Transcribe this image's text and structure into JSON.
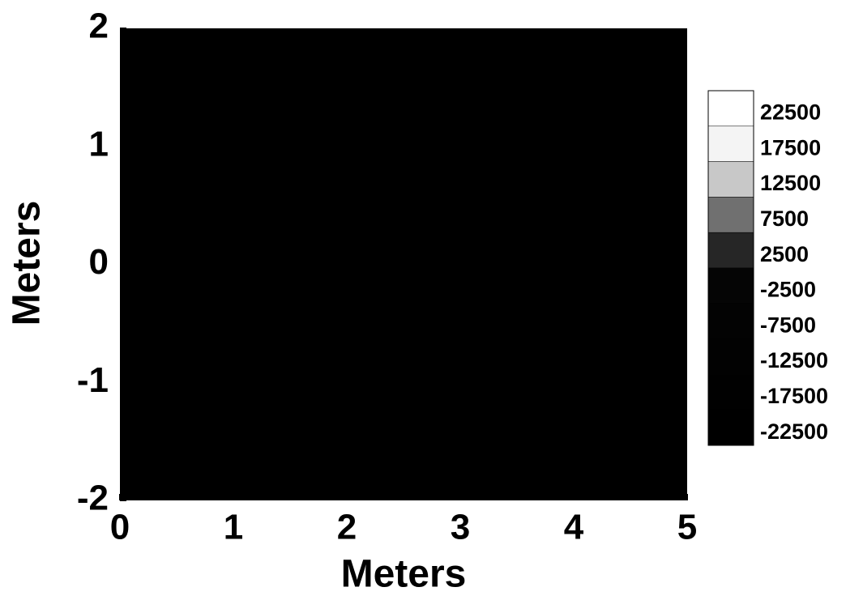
{
  "chart_data": {
    "type": "contour",
    "xlabel": "Meters",
    "ylabel": "Meters",
    "xlim": [
      0,
      5
    ],
    "xticks": [
      0,
      1,
      2,
      3,
      4,
      5
    ],
    "ylim": [
      -2,
      2
    ],
    "yticks": [
      -2,
      -1,
      0,
      1,
      2
    ],
    "background": "#000000",
    "colorbar": {
      "levels": [
        22500,
        17500,
        12500,
        7500,
        2500,
        -2500,
        -7500,
        -12500,
        -17500,
        -22500
      ],
      "colors": [
        "#ffffff",
        "#f4f4f4",
        "#c8c8c8",
        "#707070",
        "#262626",
        "#050505",
        "#030303",
        "#020202",
        "#010101",
        "#000000"
      ]
    }
  }
}
